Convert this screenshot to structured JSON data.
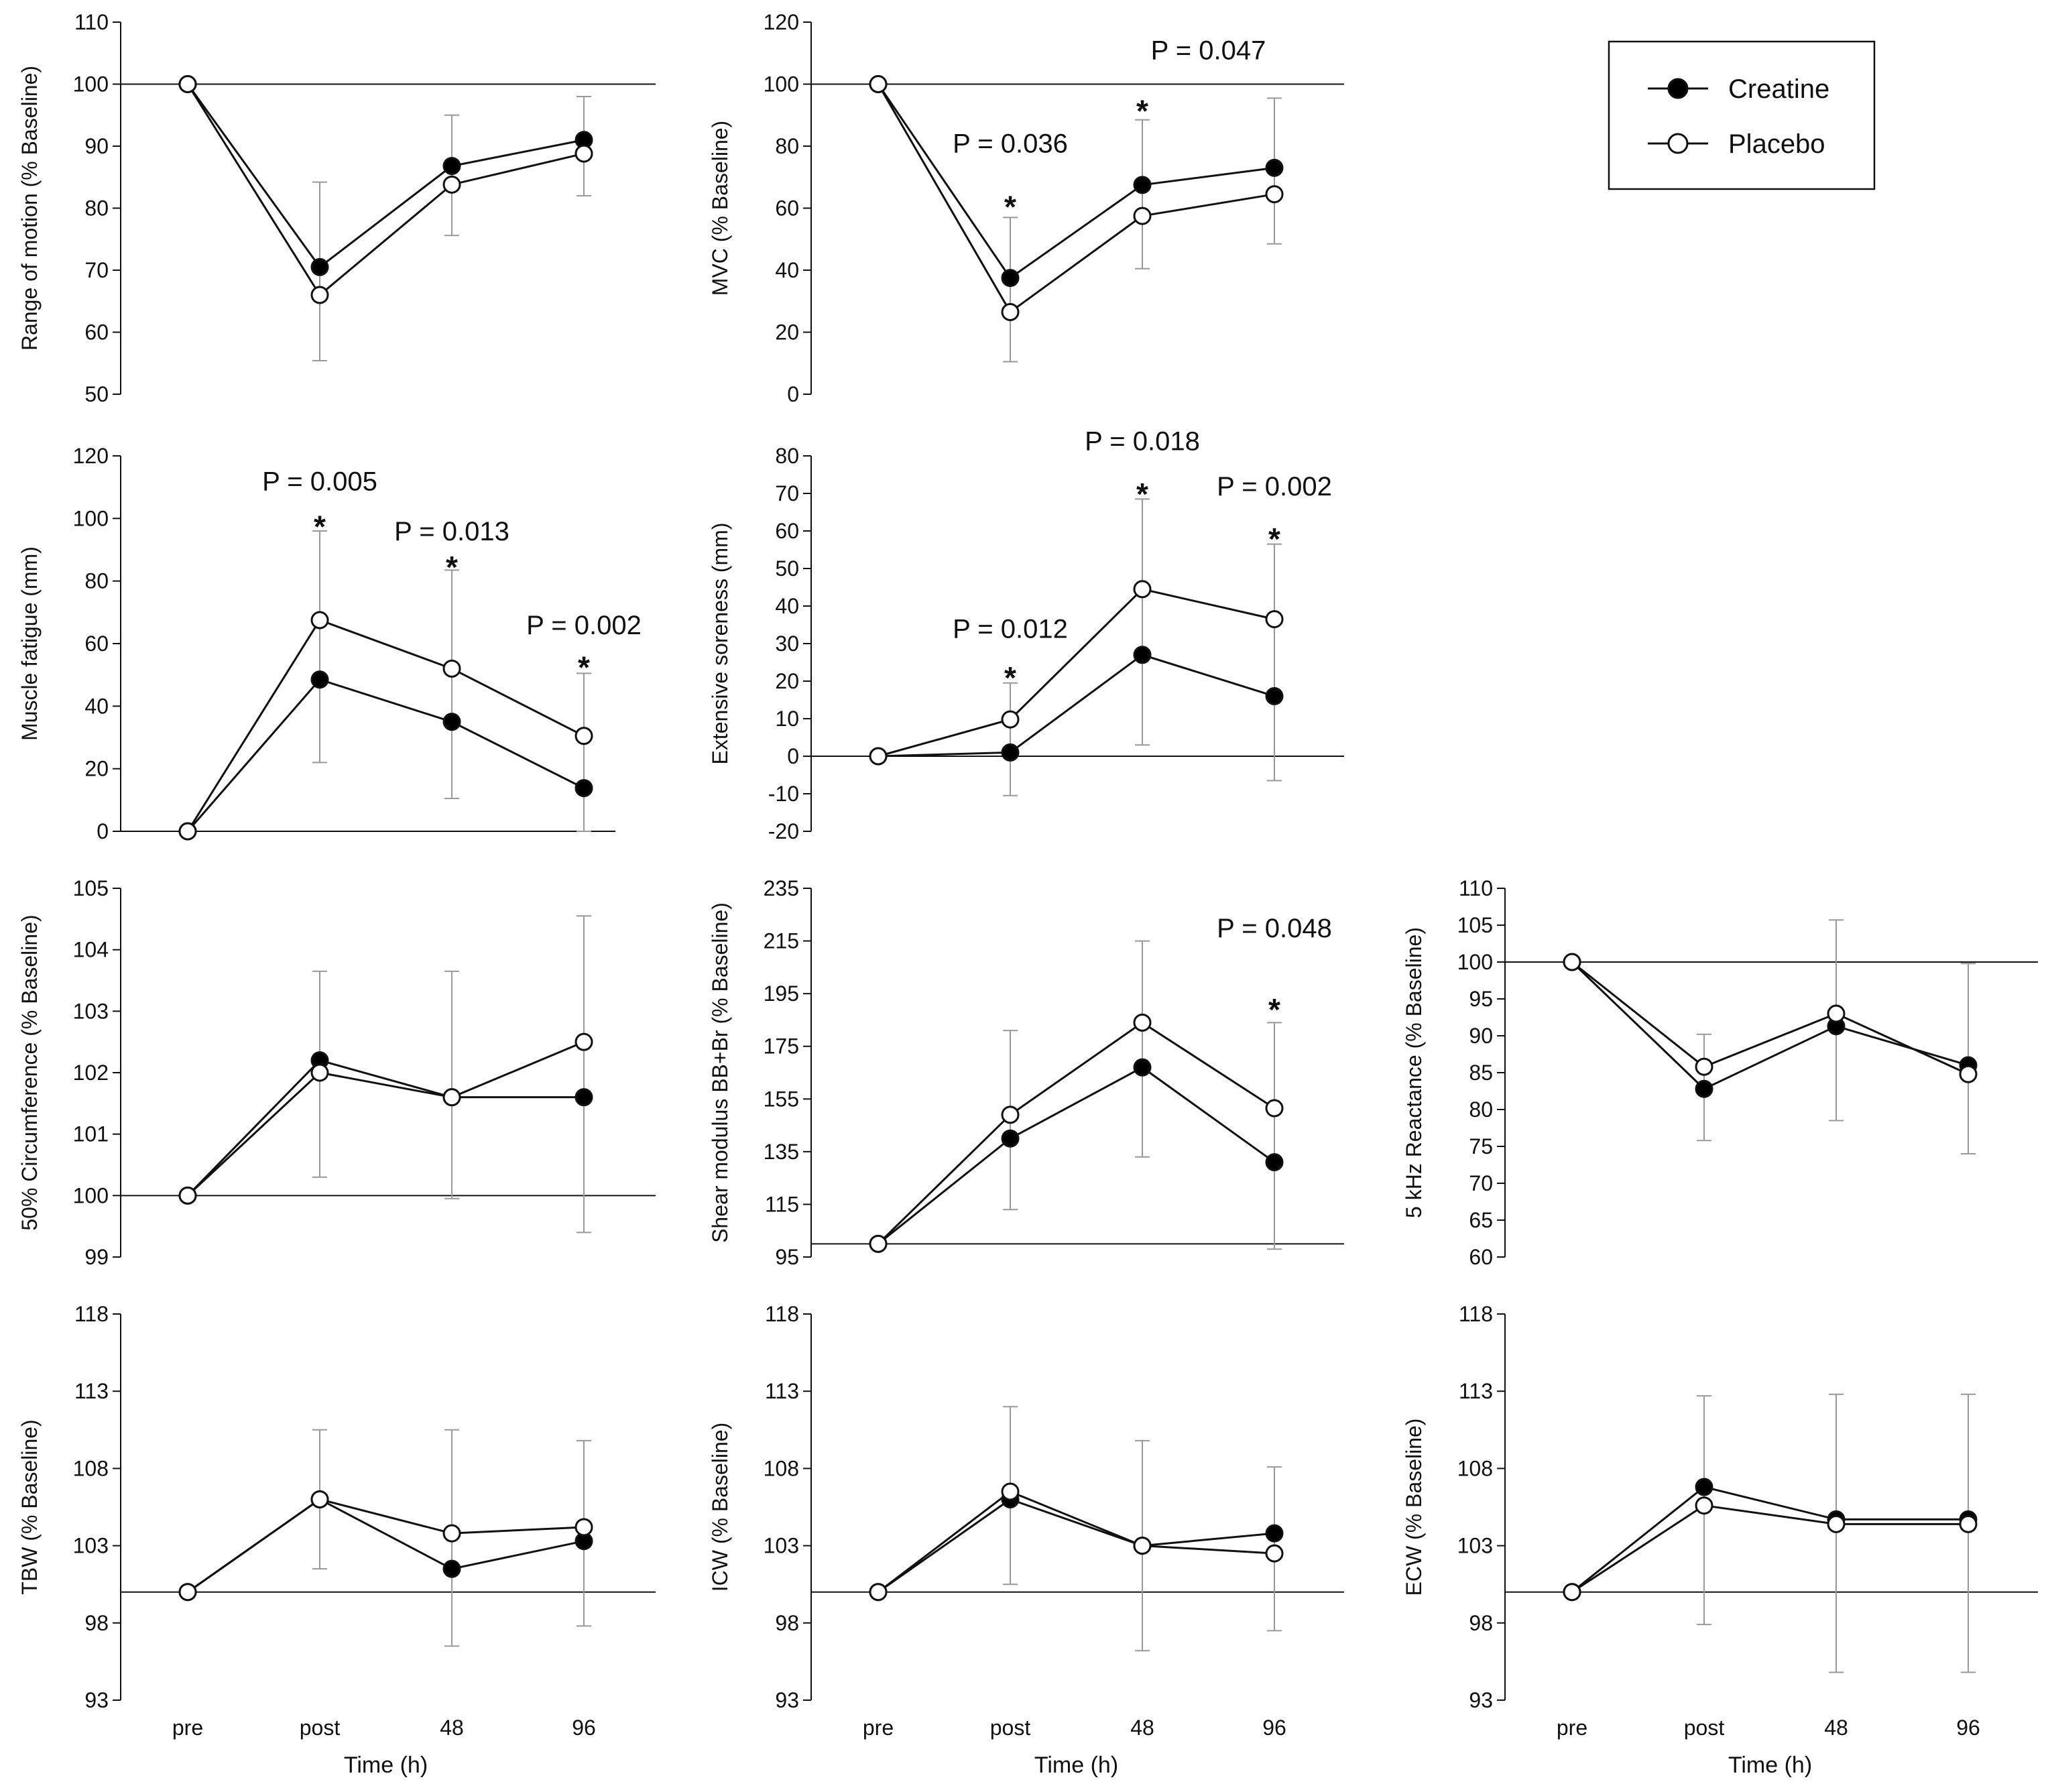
{
  "legend": {
    "position": "top-right",
    "entries": [
      {
        "label": "Creatine",
        "marker": "filled-circle",
        "color": "#000000"
      },
      {
        "label": "Placebo",
        "marker": "open-circle",
        "color": "#000000"
      }
    ]
  },
  "chart_data": [
    {
      "id": "rom",
      "type": "line",
      "row": 0,
      "col": 0,
      "ylabel": "Range of motion (% Baseline)",
      "categories": [
        "pre",
        "post",
        "48",
        "96"
      ],
      "ylim": [
        50,
        110
      ],
      "yticks": [
        50,
        60,
        70,
        80,
        90,
        100,
        110
      ],
      "baseline": 100,
      "show_xticks": false,
      "xlabel": "",
      "series": [
        {
          "name": "Creatine",
          "values": [
            100,
            70.5,
            86.8,
            91
          ]
        },
        {
          "name": "Placebo",
          "values": [
            100,
            66,
            83.8,
            88.8
          ]
        }
      ],
      "errorbars": [
        {
          "x": "post",
          "upper": 84.2,
          "lower": 55.4
        },
        {
          "x": "48",
          "upper": 95,
          "lower": 75.6
        },
        {
          "x": "96",
          "upper": 98,
          "lower": 82
        }
      ],
      "annotations": []
    },
    {
      "id": "mvc",
      "type": "line",
      "row": 0,
      "col": 1,
      "ylabel": "MVC (% Baseline)",
      "categories": [
        "pre",
        "post",
        "48",
        "96"
      ],
      "ylim": [
        0,
        120
      ],
      "yticks": [
        0,
        20,
        40,
        60,
        80,
        100,
        120
      ],
      "baseline": 100,
      "show_xticks": false,
      "xlabel": "",
      "series": [
        {
          "name": "Creatine",
          "values": [
            100,
            37.5,
            67.5,
            73
          ]
        },
        {
          "name": "Placebo",
          "values": [
            100,
            26.5,
            57.5,
            64.5
          ]
        }
      ],
      "errorbars": [
        {
          "x": "post",
          "upper": 57,
          "lower": 10.5
        },
        {
          "x": "48",
          "upper": 88.5,
          "lower": 40.5
        },
        {
          "x": "96",
          "upper": 95.5,
          "lower": 48.5
        }
      ],
      "annotations": [
        {
          "text": "P = 0.047",
          "x": 2.5,
          "y": 111
        },
        {
          "text": "P = 0.036",
          "x": 1.0,
          "y": 81
        },
        {
          "star": true,
          "x": "post",
          "y": 63
        },
        {
          "star": true,
          "x": "48",
          "y": 94
        }
      ]
    },
    {
      "id": "fatigue",
      "type": "line",
      "row": 1,
      "col": 0,
      "ylabel": "Muscle fatigue (mm)",
      "categories": [
        "pre",
        "post",
        "48",
        "96"
      ],
      "ylim": [
        0,
        120
      ],
      "yticks": [
        0,
        20,
        40,
        60,
        80,
        100,
        120
      ],
      "baseline": null,
      "show_xticks": false,
      "xlabel": "",
      "series": [
        {
          "name": "Creatine",
          "values": [
            0,
            48.5,
            35,
            13.8
          ]
        },
        {
          "name": "Placebo",
          "values": [
            0,
            67.5,
            52,
            30.5
          ]
        }
      ],
      "errorbars": [
        {
          "x": "post",
          "upper": 96,
          "lower": 22
        },
        {
          "x": "48",
          "upper": 83.5,
          "lower": 10.5
        },
        {
          "x": "96",
          "upper": 50.5,
          "lower": 0
        }
      ],
      "annotations": [
        {
          "text": "P = 0.005",
          "x": 1.0,
          "y": 112
        },
        {
          "star": true,
          "x": "post",
          "y": 100
        },
        {
          "text": "P = 0.013",
          "x": 2.0,
          "y": 96
        },
        {
          "star": true,
          "x": "48",
          "y": 87
        },
        {
          "text": "P = 0.002",
          "x": 3.0,
          "y": 66
        },
        {
          "star": true,
          "x": "96",
          "y": 55
        }
      ]
    },
    {
      "id": "soreness",
      "type": "line",
      "row": 1,
      "col": 1,
      "ylabel": "Extensive soreness (mm)",
      "categories": [
        "pre",
        "post",
        "48",
        "96"
      ],
      "ylim": [
        -20,
        80
      ],
      "yticks": [
        -20,
        -10,
        0,
        10,
        20,
        30,
        40,
        50,
        60,
        70,
        80
      ],
      "baseline": 0,
      "show_xticks": false,
      "xlabel": "",
      "series": [
        {
          "name": "Creatine",
          "values": [
            0,
            1,
            27,
            16
          ]
        },
        {
          "name": "Placebo",
          "values": [
            0,
            9.8,
            44.5,
            36.5
          ]
        }
      ],
      "errorbars": [
        {
          "x": "post",
          "upper": 19.5,
          "lower": -10.5
        },
        {
          "x": "48",
          "upper": 68.5,
          "lower": 3
        },
        {
          "x": "96",
          "upper": 56.5,
          "lower": -6.5
        }
      ],
      "annotations": [
        {
          "text": "P = 0.018",
          "x": 2.0,
          "y": 84
        },
        {
          "star": true,
          "x": "48",
          "y": 72
        },
        {
          "text": "P = 0.002",
          "x": 3.0,
          "y": 72
        },
        {
          "star": true,
          "x": "96",
          "y": 60
        },
        {
          "text": "P = 0.012",
          "x": 1.0,
          "y": 34
        },
        {
          "star": true,
          "x": "post",
          "y": 23
        }
      ]
    },
    {
      "id": "circ",
      "type": "line",
      "row": 2,
      "col": 0,
      "ylabel": "50% Circumference (% Baseline)",
      "categories": [
        "pre",
        "post",
        "48",
        "96"
      ],
      "ylim": [
        99,
        105
      ],
      "yticks": [
        99,
        100,
        101,
        102,
        103,
        104,
        105
      ],
      "baseline": 100,
      "show_xticks": false,
      "xlabel": "",
      "series": [
        {
          "name": "Creatine",
          "values": [
            100,
            102.2,
            101.6,
            101.6
          ]
        },
        {
          "name": "Placebo",
          "values": [
            100,
            102,
            101.6,
            102.5
          ]
        }
      ],
      "errorbars": [
        {
          "x": "post",
          "upper": 103.65,
          "lower": 100.3
        },
        {
          "x": "48",
          "upper": 103.65,
          "lower": 99.95
        },
        {
          "x": "96",
          "upper": 104.55,
          "lower": 99.4
        }
      ],
      "annotations": []
    },
    {
      "id": "shear",
      "type": "line",
      "row": 2,
      "col": 1,
      "ylabel": "Shear modulus BB+Br (% Baseline)",
      "categories": [
        "pre",
        "post",
        "48",
        "96"
      ],
      "ylim": [
        95,
        235
      ],
      "yticks": [
        95,
        115,
        135,
        155,
        175,
        195,
        215,
        235
      ],
      "baseline": 100,
      "show_xticks": false,
      "xlabel": "",
      "series": [
        {
          "name": "Creatine",
          "values": [
            100,
            140,
            167,
            131
          ]
        },
        {
          "name": "Placebo",
          "values": [
            100,
            149,
            184,
            151.5
          ]
        }
      ],
      "errorbars": [
        {
          "x": "post",
          "upper": 181,
          "lower": 113
        },
        {
          "x": "48",
          "upper": 215,
          "lower": 133
        },
        {
          "x": "96",
          "upper": 184,
          "lower": 98
        }
      ],
      "annotations": [
        {
          "text": "P = 0.048",
          "x": 3.0,
          "y": 220
        },
        {
          "star": true,
          "x": "96",
          "y": 192
        }
      ]
    },
    {
      "id": "reactance",
      "type": "line",
      "row": 2,
      "col": 2,
      "ylabel": "5 kHz Reactance (% Baseline)",
      "categories": [
        "pre",
        "post",
        "48",
        "96"
      ],
      "ylim": [
        60,
        110
      ],
      "yticks": [
        60,
        65,
        70,
        75,
        80,
        85,
        90,
        95,
        100,
        105,
        110
      ],
      "baseline": 100,
      "show_xticks": false,
      "xlabel": "",
      "series": [
        {
          "name": "Creatine",
          "values": [
            100,
            82.8,
            91.3,
            86
          ]
        },
        {
          "name": "Placebo",
          "values": [
            100,
            85.8,
            93,
            84.8
          ]
        }
      ],
      "errorbars": [
        {
          "x": "post",
          "upper": 90.2,
          "lower": 75.8
        },
        {
          "x": "48",
          "upper": 105.7,
          "lower": 78.5
        },
        {
          "x": "96",
          "upper": 99.8,
          "lower": 74
        }
      ],
      "annotations": []
    },
    {
      "id": "tbw",
      "type": "line",
      "row": 3,
      "col": 0,
      "ylabel": "TBW (% Baseline)",
      "categories": [
        "pre",
        "post",
        "48",
        "96"
      ],
      "ylim": [
        93,
        118
      ],
      "yticks": [
        93,
        98,
        103,
        108,
        113,
        118
      ],
      "baseline": 100,
      "show_xticks": true,
      "xlabel": "Time (h)",
      "series": [
        {
          "name": "Creatine",
          "values": [
            100,
            106,
            101.5,
            103.3
          ]
        },
        {
          "name": "Placebo",
          "values": [
            100,
            106,
            103.8,
            104.2
          ]
        }
      ],
      "errorbars": [
        {
          "x": "post",
          "upper": 110.5,
          "lower": 101.5
        },
        {
          "x": "48",
          "upper": 110.5,
          "lower": 96.5
        },
        {
          "x": "96",
          "upper": 109.8,
          "lower": 97.8
        }
      ],
      "annotations": []
    },
    {
      "id": "icw",
      "type": "line",
      "row": 3,
      "col": 1,
      "ylabel": "ICW (% Baseline)",
      "categories": [
        "pre",
        "post",
        "48",
        "96"
      ],
      "ylim": [
        93,
        118
      ],
      "yticks": [
        93,
        98,
        103,
        108,
        113,
        118
      ],
      "baseline": 100,
      "show_xticks": true,
      "xlabel": "Time (h)",
      "series": [
        {
          "name": "Creatine",
          "values": [
            100,
            106,
            103,
            103.8
          ]
        },
        {
          "name": "Placebo",
          "values": [
            100,
            106.5,
            103,
            102.5
          ]
        }
      ],
      "errorbars": [
        {
          "x": "post",
          "upper": 112,
          "lower": 100.5
        },
        {
          "x": "48",
          "upper": 109.8,
          "lower": 96.2
        },
        {
          "x": "96",
          "upper": 108.1,
          "lower": 97.5
        }
      ],
      "annotations": []
    },
    {
      "id": "ecw",
      "type": "line",
      "row": 3,
      "col": 2,
      "ylabel": "ECW (% Baseline)",
      "categories": [
        "pre",
        "post",
        "48",
        "96"
      ],
      "ylim": [
        93,
        118
      ],
      "yticks": [
        93,
        98,
        103,
        108,
        113,
        118
      ],
      "baseline": 100,
      "show_xticks": true,
      "xlabel": "Time (h)",
      "series": [
        {
          "name": "Creatine",
          "values": [
            100,
            106.8,
            104.7,
            104.7
          ]
        },
        {
          "name": "Placebo",
          "values": [
            100,
            105.6,
            104.4,
            104.4
          ]
        }
      ],
      "errorbars": [
        {
          "x": "post",
          "upper": 112.7,
          "lower": 97.9
        },
        {
          "x": "48",
          "upper": 112.8,
          "lower": 94.8
        },
        {
          "x": "96",
          "upper": 112.8,
          "lower": 94.8
        }
      ],
      "annotations": []
    }
  ]
}
